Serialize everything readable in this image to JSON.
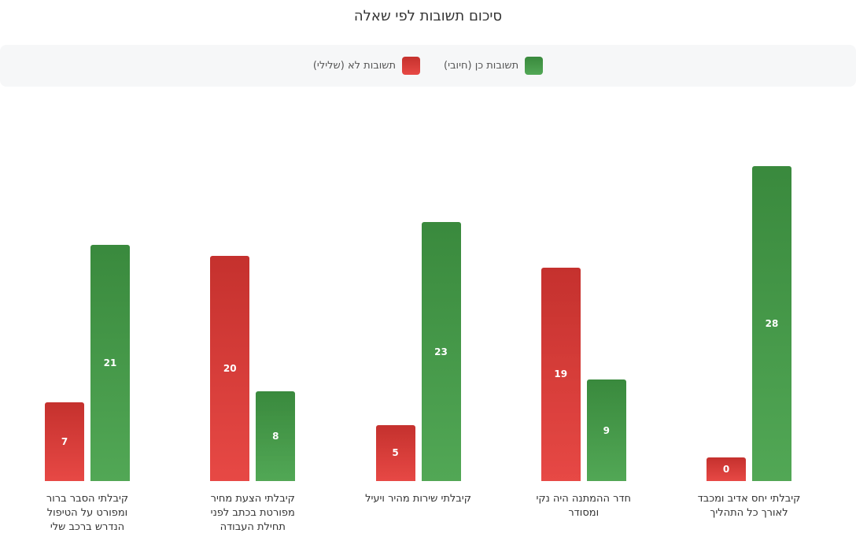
{
  "chart_data": {
    "type": "bar",
    "title": "סיכום תשובות לפי שאלה",
    "categories": [
      "קיבלתי יחס אדיב ומכבד לאורך כל התהליך",
      "חדר ההמתנה היה נקי ומסודר",
      "קיבלתי שירות מהיר ויעיל",
      "קיבלתי הצעת מחיר מפורטת בכתב לפני תחילת העבודה",
      "קיבלתי הסבר ברור ומפורט על הטיפול הנדרש ברכב שלי"
    ],
    "series": [
      {
        "name": "תשובות כן (חיובי)",
        "color": "#43a047",
        "values": [
          28,
          9,
          23,
          8,
          21
        ]
      },
      {
        "name": "תשובות לא (שלילי)",
        "color": "#e53935",
        "values": [
          0,
          19,
          5,
          20,
          7
        ]
      }
    ]
  }
}
